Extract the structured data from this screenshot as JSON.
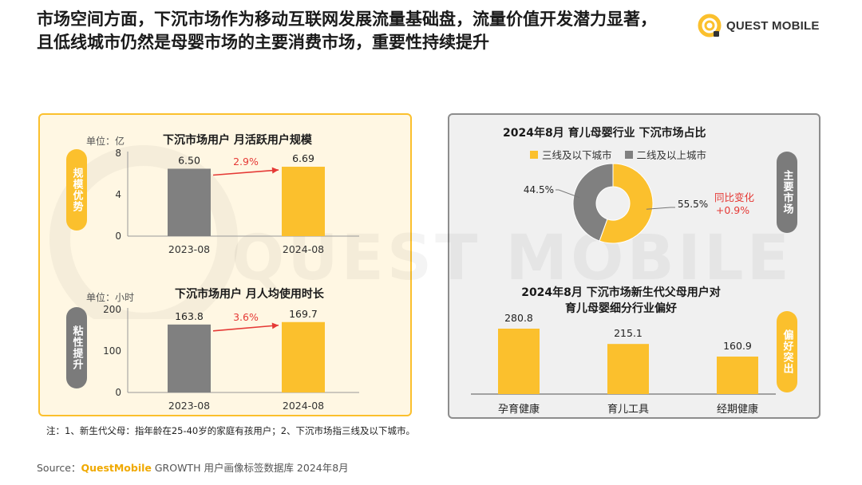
{
  "headline": "市场空间方面，下沉市场作为移动互联网发展流量基础盘，流量价值开发潜力显著，且低线城市仍然是母婴市场的主要消费市场，重要性持续提升",
  "logo": {
    "text": "QUEST MOBILE",
    "icon": "questmobile-logo-icon"
  },
  "watermark": "QUEST MOBILE",
  "left_panel": {
    "top_tag": "规模优势",
    "bottom_tag": "粘性提升"
  },
  "right_panel": {
    "top_tag": "主要市场",
    "bottom_tag": "偏好突出"
  },
  "colors": {
    "accent": "#fbc02d",
    "gray_bar": "#808080",
    "change": "#e53935"
  },
  "chart_data": [
    {
      "type": "bar",
      "title": "下沉市场用户 月活跃用户规模",
      "unit": "单位：亿",
      "categories": [
        "2023-08",
        "2024-08"
      ],
      "values": [
        6.5,
        6.69
      ],
      "value_labels": [
        "6.50",
        "6.69"
      ],
      "yticks": [
        "0",
        "4",
        "8"
      ],
      "ylim": [
        0,
        8
      ],
      "change_label": "2.9%"
    },
    {
      "type": "bar",
      "title": "下沉市场用户 月人均使用时长",
      "unit": "单位：小时",
      "categories": [
        "2023-08",
        "2024-08"
      ],
      "values": [
        163.8,
        169.7
      ],
      "value_labels": [
        "163.8",
        "169.7"
      ],
      "yticks": [
        "0",
        "100",
        "200"
      ],
      "ylim": [
        0,
        200
      ],
      "change_label": "3.6%"
    },
    {
      "type": "pie",
      "title": "2024年8月 育儿母婴行业 下沉市场占比",
      "legend": [
        "三线及以下城市",
        "二线及以上城市"
      ],
      "values": [
        55.5,
        44.5
      ],
      "value_labels": [
        "55.5%",
        "44.5%"
      ],
      "change_label": "同比变化",
      "change_value": "+0.9%"
    },
    {
      "type": "bar",
      "title": "2024年8月 下沉市场新生代父母用户对育儿母婴细分行业偏好",
      "title_line1": "2024年8月 下沉市场新生代父母用户对",
      "title_line2": "育儿母婴细分行业偏好",
      "categories": [
        "孕育健康",
        "育儿工具",
        "经期健康"
      ],
      "values": [
        280.8,
        215.1,
        160.9
      ],
      "value_labels": [
        "280.8",
        "215.1",
        "160.9"
      ]
    }
  ],
  "footnote": "注：1、新生代父母：指年龄在25-40岁的家庭有孩用户；2、下沉市场指三线及以下城市。",
  "source": {
    "prefix": "Source：",
    "brand": "QuestMobile",
    "rest": " GROWTH 用户画像标签数据库 2024年8月"
  }
}
